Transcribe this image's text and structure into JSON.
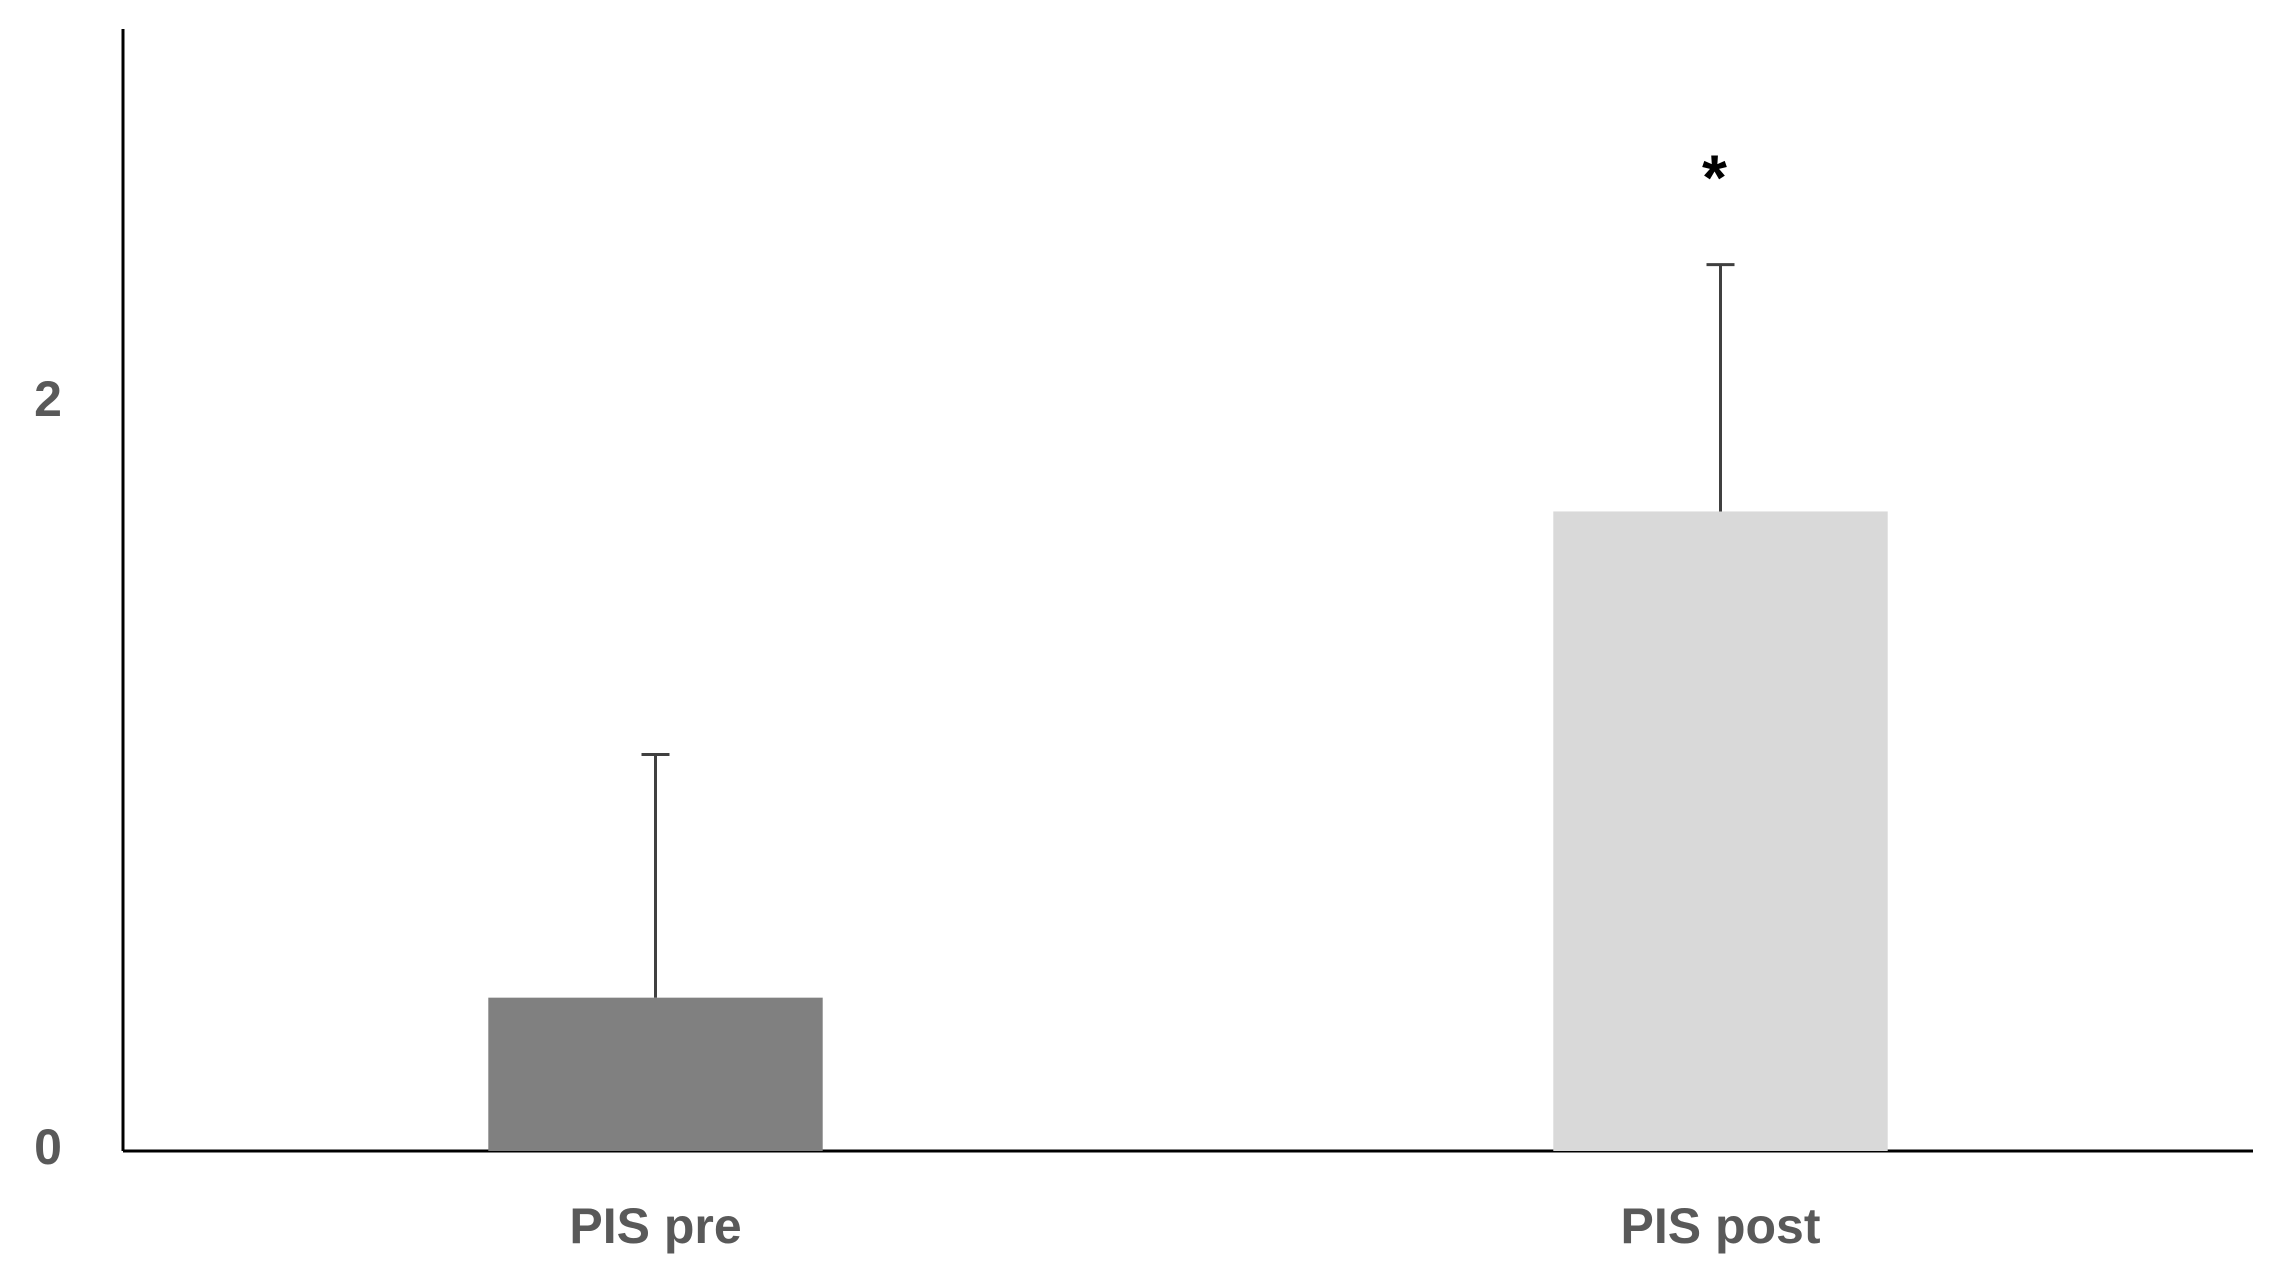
{
  "chart_data": {
    "type": "bar",
    "categories": [
      "PIS pre",
      "PIS post"
    ],
    "values": [
      0.41,
      1.71
    ],
    "errors": [
      0.65,
      0.66
    ],
    "colors": [
      "#808080",
      "#d9d9d9"
    ],
    "annotations": [
      null,
      "*"
    ],
    "ylim": [
      0,
      3
    ],
    "yticks": [
      0,
      2
    ],
    "grid": false
  }
}
